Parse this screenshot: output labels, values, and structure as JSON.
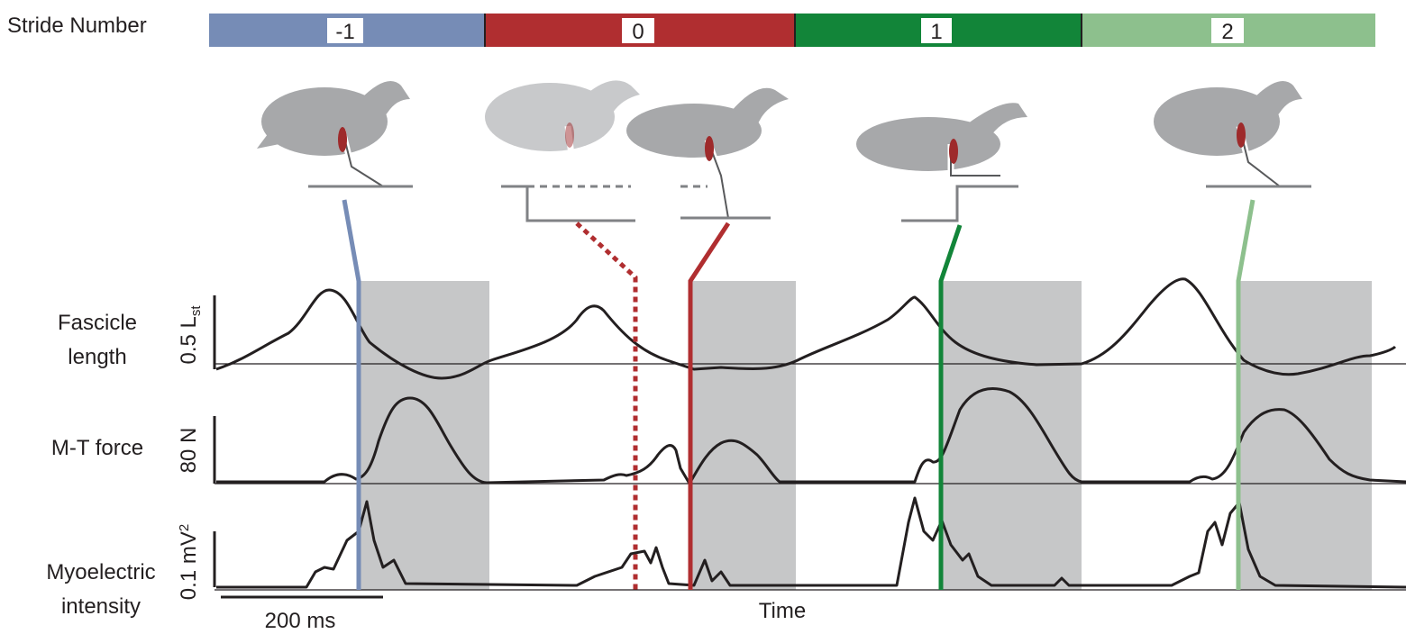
{
  "stride_bar": {
    "title": "Stride Number",
    "strides": [
      "-1",
      "0",
      "1",
      "2"
    ]
  },
  "traces": [
    {
      "label_lines": [
        "Fascicle",
        "length"
      ],
      "scale": "0.5 L",
      "scale_index": "st"
    },
    {
      "label_lines": [
        "M-T force"
      ],
      "scale": "80 N"
    },
    {
      "label_lines": [
        "Myoelectric",
        "intensity"
      ],
      "scale": "0.1 mV",
      "scale_power": "2"
    }
  ],
  "time_scale": "200 ms",
  "x_label": "Time"
}
